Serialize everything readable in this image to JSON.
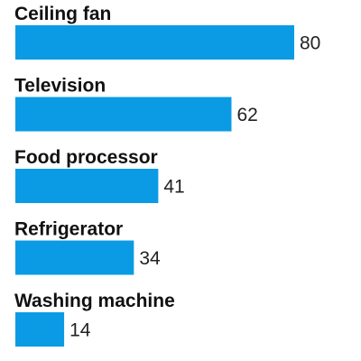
{
  "chart_data": {
    "type": "bar",
    "orientation": "horizontal",
    "categories": [
      "Ceiling fan",
      "Television",
      "Food processor",
      "Refrigerator",
      "Washing machine"
    ],
    "values": [
      80,
      62,
      41,
      34,
      14
    ],
    "xlim": [
      0,
      80
    ],
    "grid": false,
    "colors": {
      "bar": "#0a9be4",
      "label": "#111111",
      "value": "#222222"
    }
  }
}
